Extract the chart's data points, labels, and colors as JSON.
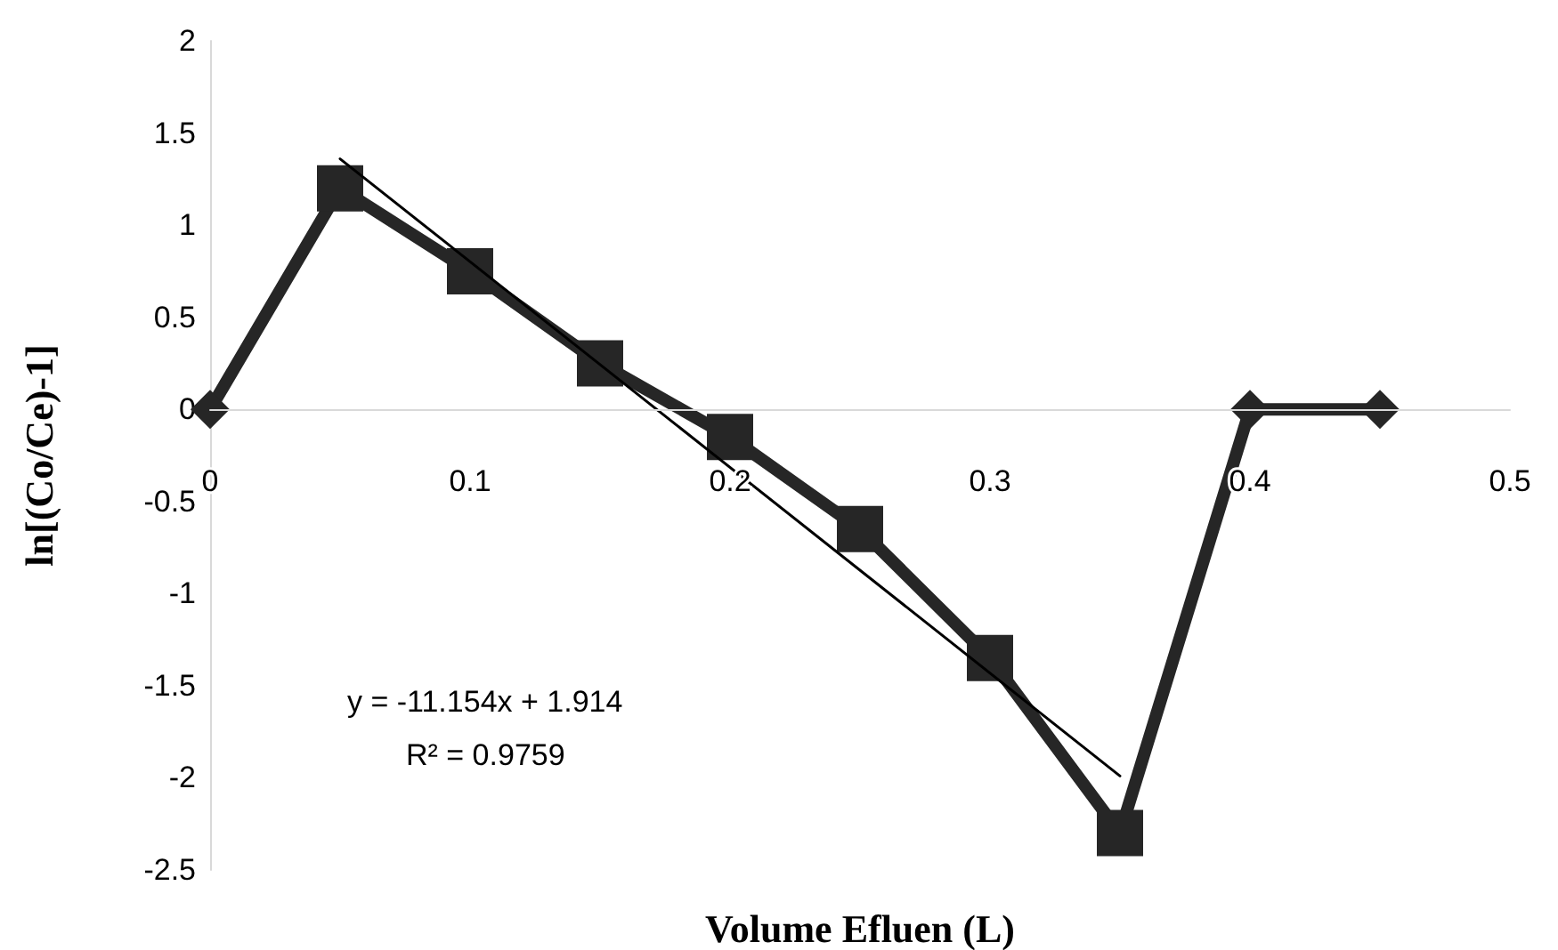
{
  "chart_data": {
    "type": "line",
    "xlabel": "Volume Efluen (L)",
    "ylabel": "ln[(Co/Ce)-1]",
    "x": [
      0,
      0.05,
      0.1,
      0.15,
      0.2,
      0.25,
      0.3,
      0.35,
      0.4,
      0.45
    ],
    "series": [
      {
        "color": "#262626",
        "marker": "diamond",
        "values": [
          0,
          1.2,
          0.75,
          0.25,
          -0.15,
          -0.65,
          -1.35,
          -2.3,
          0,
          0
        ]
      },
      {
        "type": "scatter",
        "color": "#262626",
        "marker": "square",
        "x": [
          0.05,
          0.1,
          0.15,
          0.2,
          0.25,
          0.3,
          0.35
        ],
        "values": [
          1.2,
          0.75,
          0.25,
          -0.15,
          -0.65,
          -1.35,
          -2.3
        ]
      },
      {
        "type": "line",
        "color": "#000000",
        "marker": "none",
        "x": [
          0.05,
          0.35
        ],
        "values": [
          1.36,
          -1.99
        ]
      }
    ],
    "xlim": [
      0,
      0.5
    ],
    "xticks": [
      0,
      0.1,
      0.2,
      0.3,
      0.4,
      0.5
    ],
    "ylim": [
      -2.5,
      2
    ],
    "yticks": [
      -2.5,
      -2,
      -1.5,
      -1,
      -0.5,
      0,
      0.5,
      1,
      1.5,
      2
    ],
    "grid": false,
    "annotations": [
      "y = -11.154x + 1.914",
      "R² = 0.9759"
    ]
  }
}
